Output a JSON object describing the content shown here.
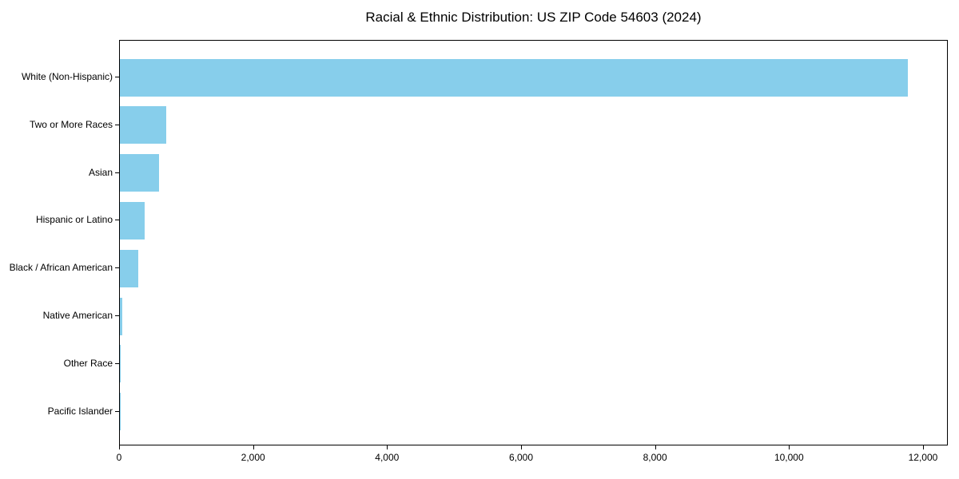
{
  "chart_data": {
    "type": "bar",
    "orientation": "horizontal",
    "title": "Racial & Ethnic Distribution: US ZIP Code 54603 (2024)",
    "categories": [
      "White (Non-Hispanic)",
      "Two or More Races",
      "Asian",
      "Hispanic or Latino",
      "Black / African American",
      "Native American",
      "Other Race",
      "Pacific Islander"
    ],
    "values": [
      11760,
      690,
      590,
      370,
      270,
      30,
      12,
      4
    ],
    "bar_color": "#87CEEB",
    "axis_color": "#000000",
    "text_color": "#000000",
    "xlabel": "",
    "ylabel": "",
    "xlim": [
      0,
      12370
    ],
    "x_ticks": [
      0,
      2000,
      4000,
      6000,
      8000,
      10000,
      12000
    ],
    "x_tick_labels": [
      "0",
      "2,000",
      "4,000",
      "6,000",
      "8,000",
      "10,000",
      "12,000"
    ],
    "grid": false,
    "legend": "none"
  }
}
